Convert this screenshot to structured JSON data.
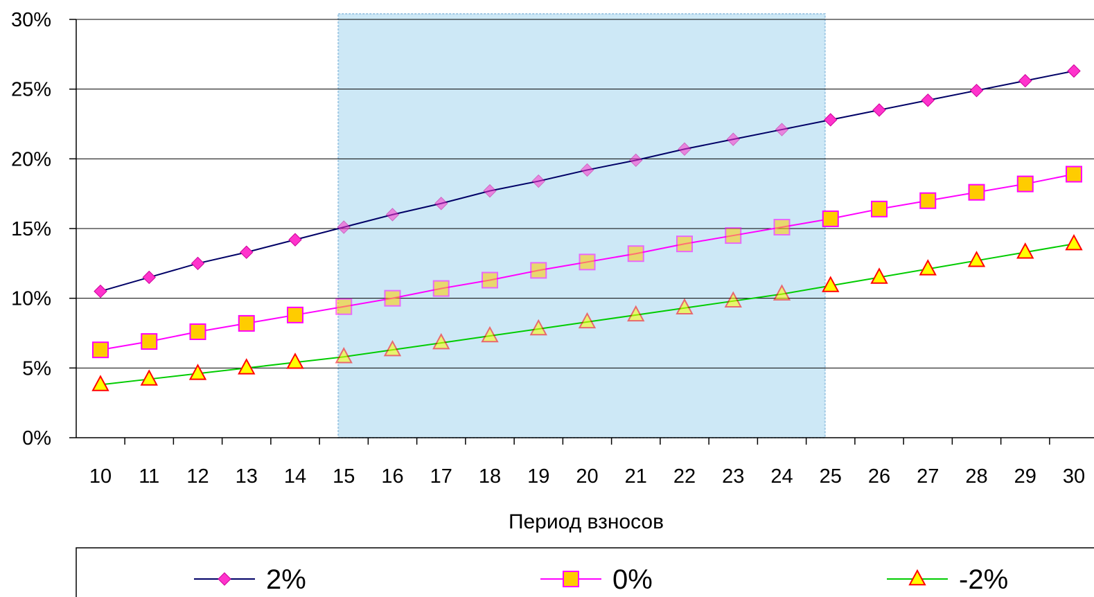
{
  "chart_data": {
    "type": "line",
    "x": [
      10,
      11,
      12,
      13,
      14,
      15,
      16,
      17,
      18,
      19,
      20,
      21,
      22,
      23,
      24,
      25,
      26,
      27,
      28,
      29,
      30
    ],
    "x_tick_labels": [
      "10",
      "11",
      "12",
      "13",
      "14",
      "15",
      "16",
      "17",
      "18",
      "19",
      "20",
      "21",
      "22",
      "23",
      "24",
      "25",
      "26",
      "27",
      "28",
      "29",
      "30"
    ],
    "xlabel": "Период взносов",
    "ylabel": "",
    "title": "",
    "ylim": [
      0,
      0.3
    ],
    "y_ticks": [
      0,
      0.05,
      0.1,
      0.15,
      0.2,
      0.25,
      0.3
    ],
    "y_tick_labels": [
      "0%",
      "5%",
      "10%",
      "15%",
      "20%",
      "25%",
      "30%"
    ],
    "grid": "horizontal",
    "legend_position": "bottom",
    "highlight_region": {
      "x_from": 15,
      "x_to": 25,
      "color": "#cde8f6"
    },
    "series": [
      {
        "name": "2%",
        "marker": "diamond",
        "line_color": "#000066",
        "marker_fill": "#ff33cc",
        "values": [
          0.105,
          0.115,
          0.125,
          0.133,
          0.142,
          0.151,
          0.16,
          0.168,
          0.177,
          0.184,
          0.192,
          0.199,
          0.207,
          0.214,
          0.221,
          0.228,
          0.235,
          0.242,
          0.249,
          0.256,
          0.263
        ]
      },
      {
        "name": "0%",
        "marker": "square",
        "line_color": "#ff00ff",
        "marker_fill": "#ffcc00",
        "values": [
          0.063,
          0.069,
          0.076,
          0.082,
          0.088,
          0.094,
          0.1,
          0.107,
          0.113,
          0.12,
          0.126,
          0.132,
          0.139,
          0.145,
          0.151,
          0.157,
          0.164,
          0.17,
          0.176,
          0.182,
          0.189
        ]
      },
      {
        "name": "-2%",
        "marker": "triangle",
        "line_color": "#00cc00",
        "marker_fill": "#ffff00",
        "marker_stroke": "#ff0000",
        "values": [
          0.038,
          0.042,
          0.046,
          0.05,
          0.054,
          0.058,
          0.063,
          0.068,
          0.073,
          0.078,
          0.083,
          0.088,
          0.093,
          0.098,
          0.103,
          0.109,
          0.115,
          0.121,
          0.127,
          0.133,
          0.139
        ]
      }
    ]
  }
}
